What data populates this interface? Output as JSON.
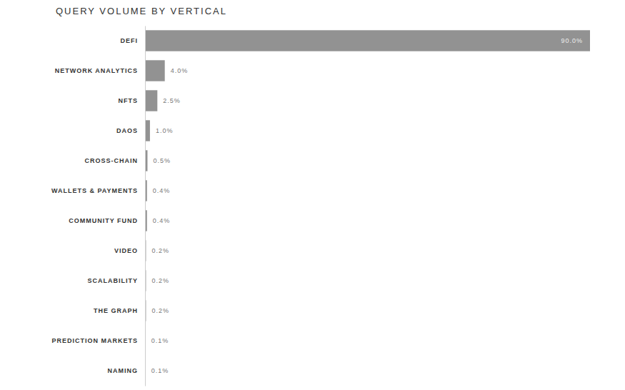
{
  "chart_data": {
    "type": "bar",
    "title": "QUERY VOLUME BY VERTICAL",
    "orientation": "horizontal",
    "categories": [
      "DEFI",
      "NETWORK ANALYTICS",
      "NFTS",
      "DAOS",
      "CROSS-CHAIN",
      "WALLETS & PAYMENTS",
      "COMMUNITY FUND",
      "VIDEO",
      "SCALABILITY",
      "THE GRAPH",
      "PREDICTION MARKETS",
      "NAMING"
    ],
    "values": [
      90.0,
      4.0,
      2.5,
      1.0,
      0.5,
      0.4,
      0.4,
      0.2,
      0.2,
      0.2,
      0.1,
      0.1
    ],
    "value_labels": [
      "90.0%",
      "4.0%",
      "2.5%",
      "1.0%",
      "0.5%",
      "0.4%",
      "0.4%",
      "0.2%",
      "0.2%",
      "0.2%",
      "0.1%",
      "0.1%"
    ],
    "color": "#929292",
    "xlim": [
      0,
      90
    ],
    "data_labels": true,
    "tick_labels": "y",
    "grid": false
  }
}
